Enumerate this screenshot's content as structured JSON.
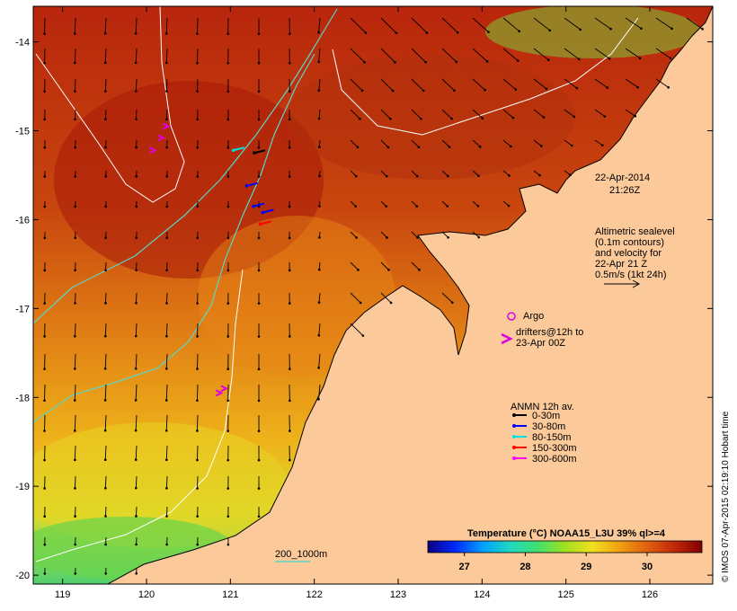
{
  "map": {
    "lon_range": [
      118.65,
      126.75
    ],
    "lat_range": [
      -20.1,
      -13.6
    ],
    "lon_ticks": [
      "119",
      "120",
      "121",
      "122",
      "123",
      "124",
      "125",
      "126"
    ],
    "lat_ticks": [
      "-14",
      "-15",
      "-16",
      "-17",
      "-18",
      "-19",
      "-20"
    ],
    "colors": {
      "land": "#fbc99a",
      "sst_hot": "#b2200a",
      "sst_warm": "#e07a12",
      "sst_mid": "#f1c21c",
      "sst_cool": "#9fd93a",
      "sst_cold": "#27c88f",
      "contour_sealevel": "#ffffff",
      "bathymetry_200_1000m": "#5ad6c6",
      "coastline": "#000000"
    }
  },
  "date_label": {
    "line1": "22-Apr-2014",
    "line2": "21:26Z"
  },
  "sealevel_legend": {
    "lines": [
      "Altimetric sealevel",
      "(0.1m contours)",
      "and velocity for",
      "22-Apr 21 Z",
      "0.5m/s (1kt 24h)"
    ]
  },
  "argo_legend": {
    "label": "Argo",
    "color": "#e000e0"
  },
  "drifters_legend": {
    "lines": [
      "drifters@12h to",
      "23-Apr 00Z"
    ],
    "color": "#e000e0"
  },
  "anmn_legend": {
    "title": "ANMN 12h av.",
    "items": [
      {
        "label": "0-30m",
        "color": "#000000"
      },
      {
        "label": "30-80m",
        "color": "#0000ff"
      },
      {
        "label": "80-150m",
        "color": "#00e0e0"
      },
      {
        "label": "150-300m",
        "color": "#ff0000"
      },
      {
        "label": "300-600m",
        "color": "#ff00ff"
      }
    ]
  },
  "colorbar": {
    "title": "Temperature (°C) NOAA15_L3U 39% ql>=4",
    "range": [
      26.4,
      30.9
    ],
    "ticks": [
      "27",
      "28",
      "29",
      "30"
    ],
    "stops": [
      "#0a0080",
      "#0028ff",
      "#00a0ff",
      "#20d8c0",
      "#40e070",
      "#a0e020",
      "#f0e020",
      "#f0a010",
      "#e06010",
      "#c02808",
      "#800000"
    ]
  },
  "isobath_legend": {
    "label": "200_1000m"
  },
  "credit": {
    "text": "© IMOS 07-Apr-2015 02:19:10 Hobart time"
  },
  "drifters": [
    {
      "lon": 120.24,
      "lat": -14.95
    },
    {
      "lon": 120.18,
      "lat": -15.08
    },
    {
      "lon": 120.08,
      "lat": -15.22
    },
    {
      "lon": 120.93,
      "lat": -17.9
    },
    {
      "lon": 120.87,
      "lat": -17.95
    }
  ],
  "anmn_markers": [
    {
      "lon": 121.34,
      "lat": -15.85,
      "color": "#0000ff"
    },
    {
      "lon": 121.45,
      "lat": -15.92,
      "color": "#0000ff"
    },
    {
      "lon": 121.26,
      "lat": -15.62,
      "color": "#0000ff"
    },
    {
      "lon": 121.42,
      "lat": -16.05,
      "color": "#ff0000"
    },
    {
      "lon": 121.1,
      "lat": -15.22,
      "color": "#00e0e0"
    },
    {
      "lon": 121.35,
      "lat": -15.25,
      "color": "#000000"
    }
  ]
}
